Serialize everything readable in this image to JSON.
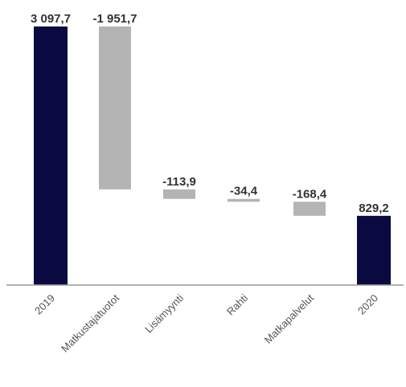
{
  "chart_data": {
    "type": "waterfall",
    "categories": [
      "2019",
      "Matkustajatuotot",
      "Lisämyynti",
      "Rahti",
      "Matkapalvelut",
      "2020"
    ],
    "values": [
      3097.7,
      -1951.7,
      -113.9,
      -34.4,
      -168.4,
      829.2
    ],
    "value_labels": [
      "3 097,7",
      "-1 951,7",
      "-113,9",
      "-34,4",
      "-168,4",
      "829,2"
    ],
    "bar_kinds": [
      "total",
      "delta",
      "delta",
      "delta",
      "delta",
      "total"
    ],
    "ylim": [
      0,
      3097.7
    ],
    "grid": false,
    "legend": "none",
    "title": "",
    "xlabel": "",
    "ylabel": "",
    "colors": {
      "total": "#0b0a40",
      "delta": "#b4b4b4",
      "axis": "#999999"
    }
  }
}
